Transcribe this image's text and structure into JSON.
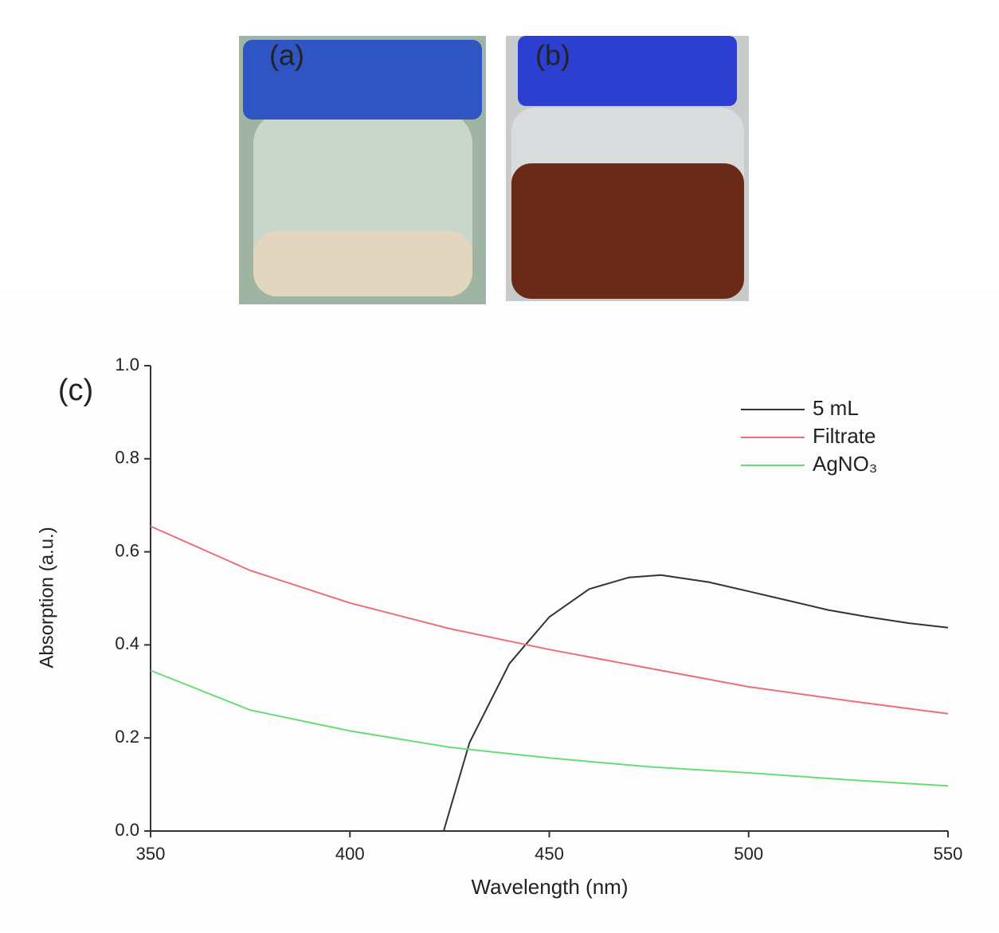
{
  "panel_labels": [
    "(a)",
    "(b)"
  ],
  "chart_data": {
    "type": "line",
    "panel_label": "(c)",
    "x_label": "Wavelength (nm)",
    "y_label": "Absorption (a.u.)",
    "xlim": [
      350,
      550
    ],
    "ylim": [
      0,
      1
    ],
    "xticks": [
      350,
      400,
      450,
      500,
      550
    ],
    "yticks": [
      {
        "value": 0,
        "label": "0.0"
      },
      0.2,
      0.4,
      0.6,
      0.8,
      {
        "value": 1,
        "label": "1.0"
      }
    ],
    "legend": "upper right",
    "series": [
      {
        "name": "5 mL",
        "color": "#333333",
        "x": [
          423.5,
          430,
          440,
          450,
          460,
          470,
          478,
          490,
          500,
          510,
          520,
          530,
          540,
          550
        ],
        "values": [
          0,
          0.19,
          0.36,
          0.46,
          0.52,
          0.545,
          0.55,
          0.535,
          0.515,
          0.495,
          0.475,
          0.46,
          0.447,
          0.437
        ]
      },
      {
        "name": "Filtrate",
        "color": "#e8707a",
        "x": [
          350,
          375,
          400,
          425,
          450,
          475,
          500,
          525,
          550
        ],
        "values": [
          0.655,
          0.56,
          0.49,
          0.435,
          0.39,
          0.35,
          0.31,
          0.28,
          0.252
        ]
      },
      {
        "name": "AgNO₃",
        "color": "#66dd77",
        "x": [
          350,
          375,
          400,
          425,
          450,
          475,
          500,
          525,
          550
        ],
        "values": [
          0.345,
          0.26,
          0.215,
          0.18,
          0.157,
          0.138,
          0.125,
          0.11,
          0.097
        ]
      }
    ]
  }
}
